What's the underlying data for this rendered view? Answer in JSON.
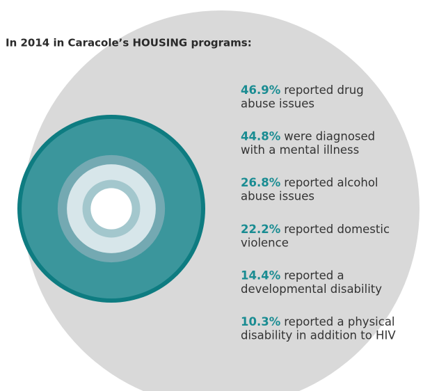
{
  "chart_data": {
    "type": "concentric",
    "title": "In 2014 in Caracole’s HOUSING programs:",
    "categories": [
      [
        "reported drug",
        "abuse issues"
      ],
      [
        "were diagnosed",
        "with a mental illness"
      ],
      [
        "reported alcohol",
        "abuse issues"
      ],
      [
        "reported domestic",
        "violence"
      ],
      [
        "reported a",
        "developmental disability"
      ],
      [
        "reported a physical",
        "disability in addition to HIV"
      ]
    ],
    "values": [
      46.9,
      44.8,
      26.8,
      22.2,
      14.4,
      10.3
    ],
    "value_labels": [
      "46.9%",
      "44.8%",
      "26.8%",
      "22.2%",
      "14.4%",
      "10.3%"
    ],
    "colors": [
      "#0e7c81",
      "#3b969c",
      "#74a9b2",
      "#d7e6ea",
      "#a3c7cd",
      "#ffffff"
    ],
    "label_color": "#1a8c92",
    "background_color": "#d9d9d9"
  }
}
